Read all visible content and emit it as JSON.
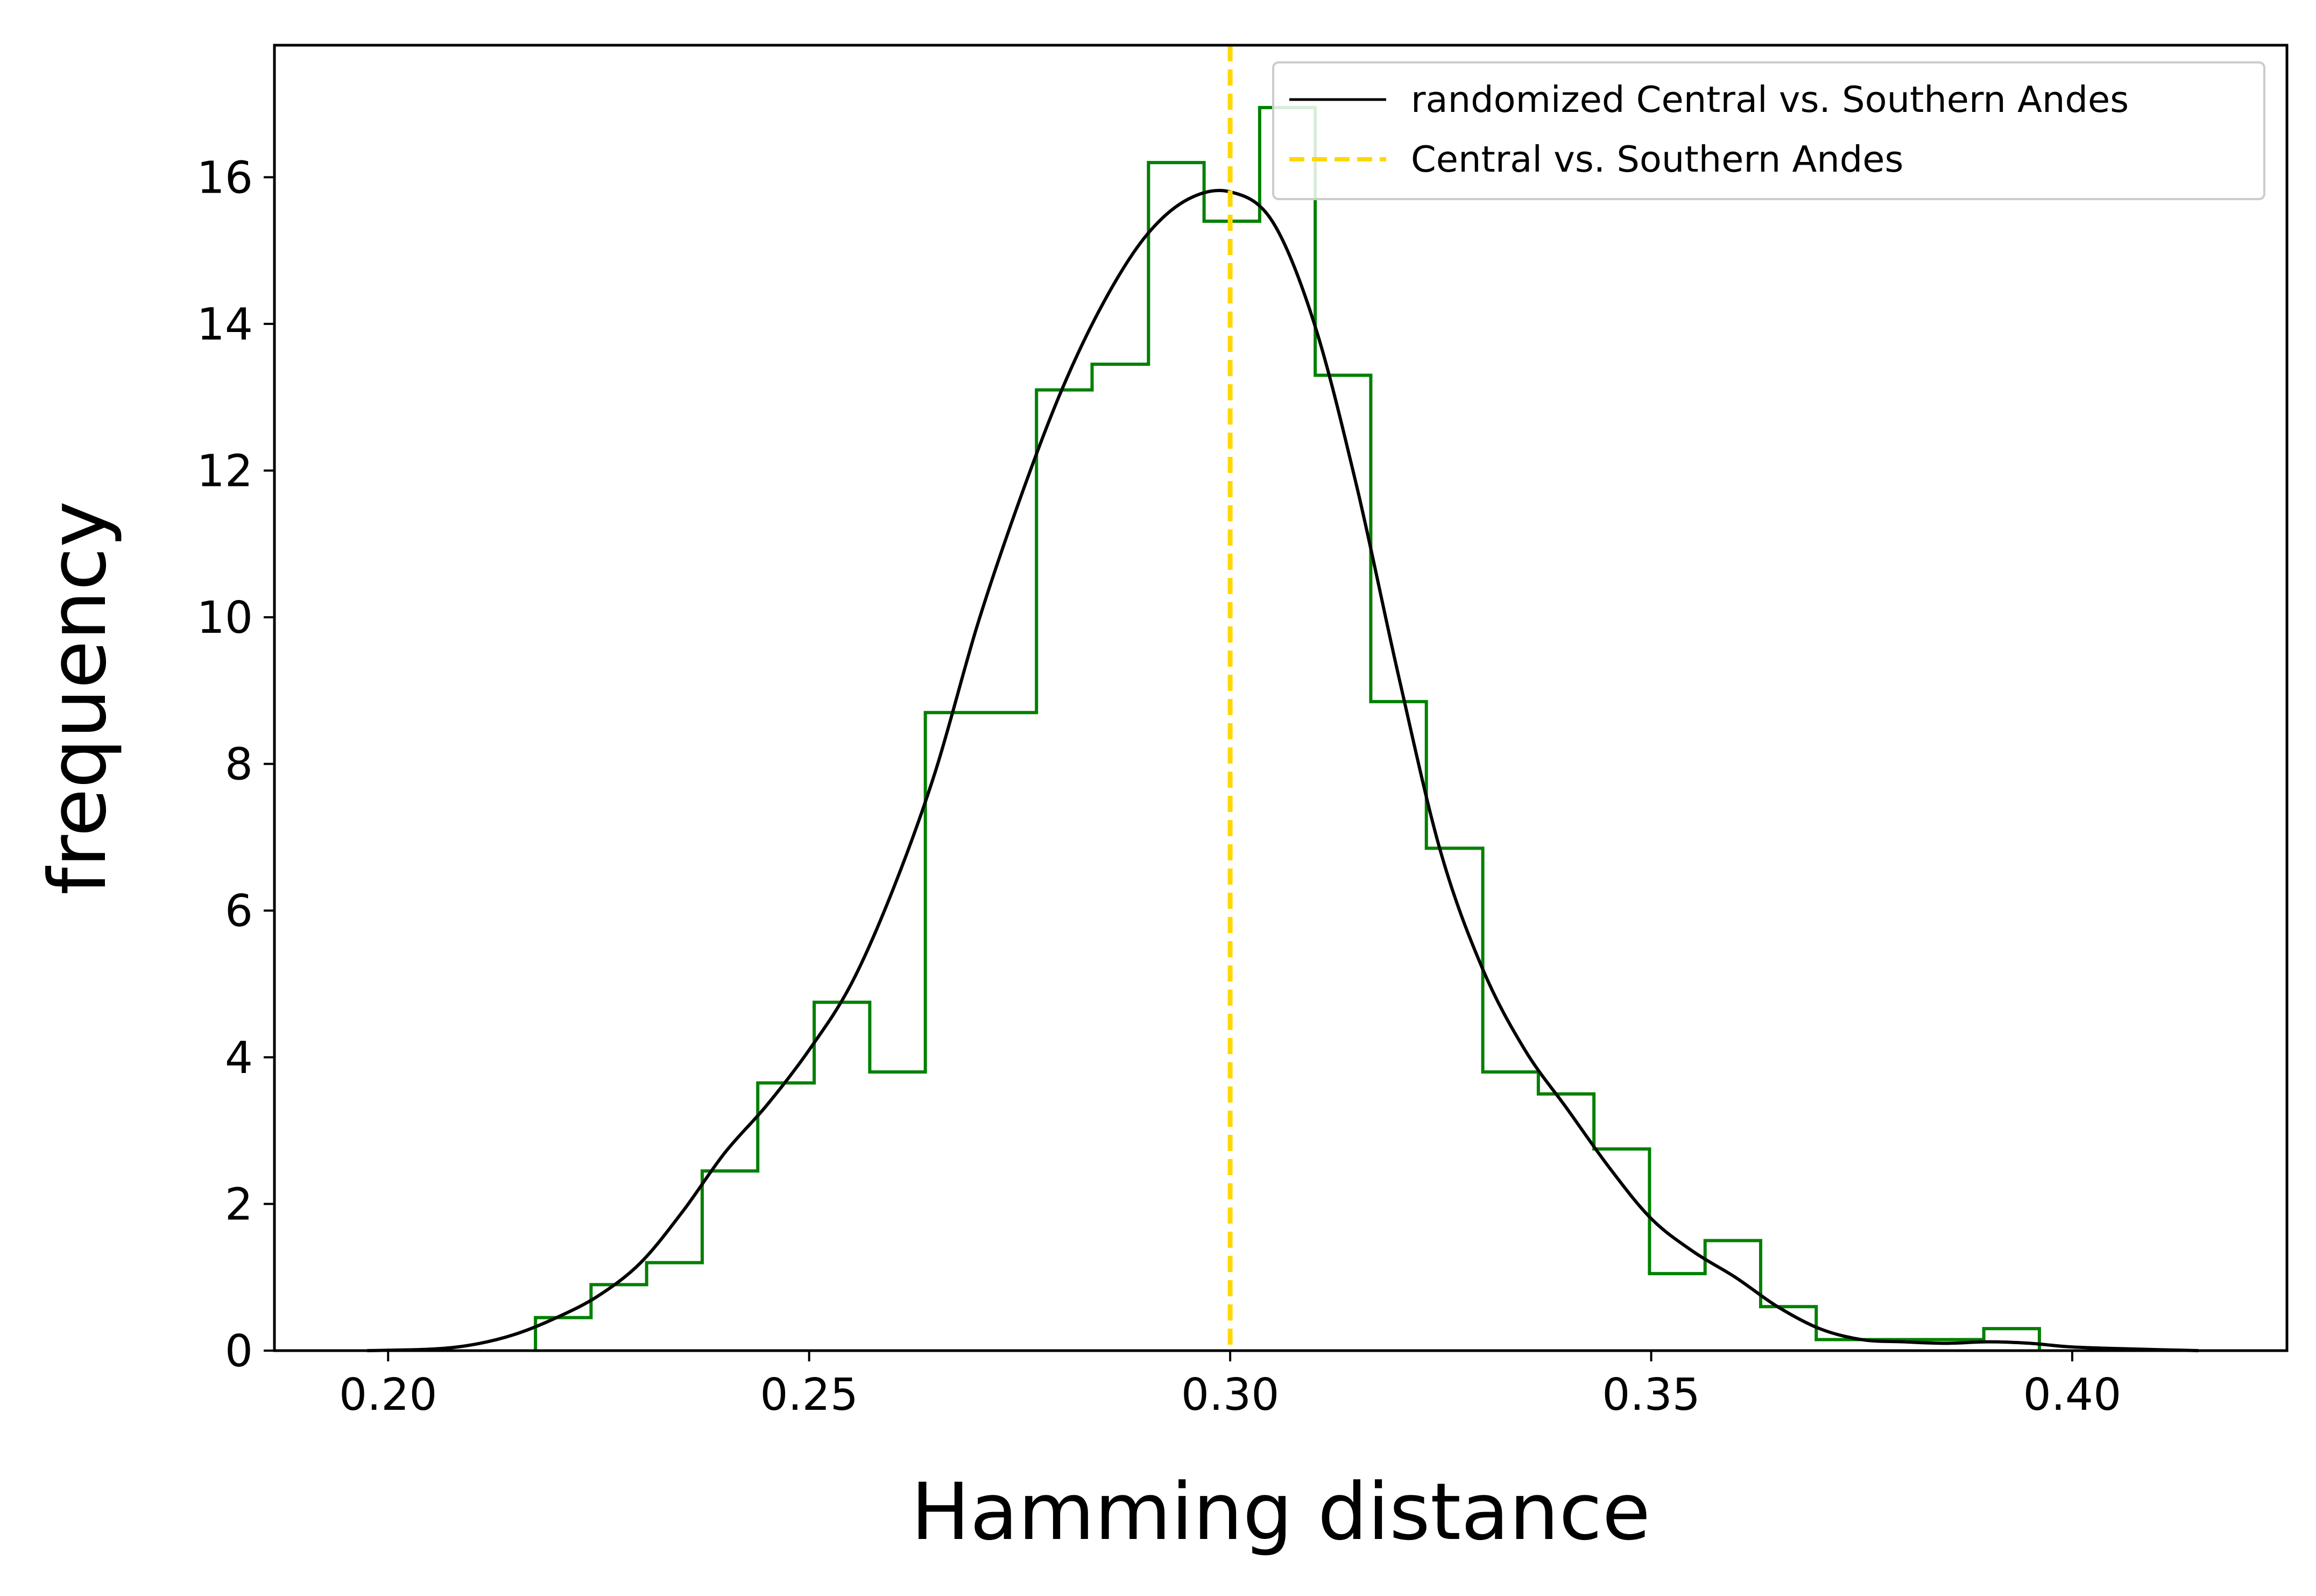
{
  "chart_data": {
    "type": "histogram",
    "xlabel": "Hamming distance",
    "ylabel": "frequency",
    "xlim": [
      0.1865,
      0.4255
    ],
    "ylim": [
      0,
      17.8
    ],
    "xticks": [
      0.2,
      0.25,
      0.3,
      0.35,
      0.4
    ],
    "xtick_labels": [
      "0.20",
      "0.25",
      "0.30",
      "0.35",
      "0.40"
    ],
    "yticks": [
      0,
      2,
      4,
      6,
      8,
      10,
      12,
      14,
      16
    ],
    "ytick_labels": [
      "0",
      "2",
      "4",
      "6",
      "8",
      "10",
      "12",
      "14",
      "16"
    ],
    "grid": false,
    "legend_position": "top-right",
    "legend": [
      {
        "label": "randomized Central vs. Southern Andes",
        "style": "solid",
        "color": "#000000"
      },
      {
        "label": "Central vs. Southern Andes",
        "style": "dashed",
        "color": "#FFD700"
      }
    ],
    "histogram": {
      "color": "#008000",
      "bin_edges": [
        0.2175,
        0.2241,
        0.2307,
        0.2373,
        0.2439,
        0.2506,
        0.2572,
        0.2638,
        0.2704,
        0.277,
        0.2836,
        0.2903,
        0.2969,
        0.3035,
        0.3101,
        0.3167,
        0.3233,
        0.33,
        0.3366,
        0.3432,
        0.3498,
        0.3564,
        0.363,
        0.3696,
        0.3763,
        0.3829,
        0.3895,
        0.3961
      ],
      "values": [
        0.45,
        0.9,
        1.2,
        2.45,
        3.65,
        4.75,
        3.8,
        8.7,
        8.7,
        13.1,
        13.45,
        16.2,
        15.4,
        16.95,
        13.3,
        8.85,
        6.85,
        3.8,
        3.5,
        2.75,
        1.05,
        1.5,
        0.6,
        0.15,
        0.15,
        0.15,
        0.3
      ]
    },
    "kde": {
      "color": "#000000",
      "x": [
        0.1975,
        0.205,
        0.21,
        0.215,
        0.22,
        0.225,
        0.23,
        0.235,
        0.24,
        0.245,
        0.25,
        0.255,
        0.26,
        0.265,
        0.27,
        0.275,
        0.28,
        0.285,
        0.29,
        0.295,
        0.3,
        0.305,
        0.31,
        0.315,
        0.32,
        0.325,
        0.33,
        0.335,
        0.34,
        0.345,
        0.35,
        0.355,
        0.36,
        0.365,
        0.37,
        0.375,
        0.38,
        0.385,
        0.39,
        0.395,
        0.4,
        0.408,
        0.415
      ],
      "y": [
        0.0,
        0.02,
        0.08,
        0.22,
        0.45,
        0.75,
        1.2,
        1.9,
        2.7,
        3.35,
        4.1,
        5.0,
        6.3,
        7.9,
        9.9,
        11.6,
        13.1,
        14.3,
        15.2,
        15.7,
        15.8,
        15.4,
        14.0,
        11.8,
        9.2,
        6.8,
        5.2,
        4.1,
        3.3,
        2.5,
        1.8,
        1.35,
        1.0,
        0.6,
        0.3,
        0.15,
        0.12,
        0.1,
        0.12,
        0.1,
        0.05,
        0.02,
        0.0
      ]
    },
    "reference_line": {
      "x": 0.3,
      "color": "#FFD700",
      "style": "dashed"
    }
  }
}
